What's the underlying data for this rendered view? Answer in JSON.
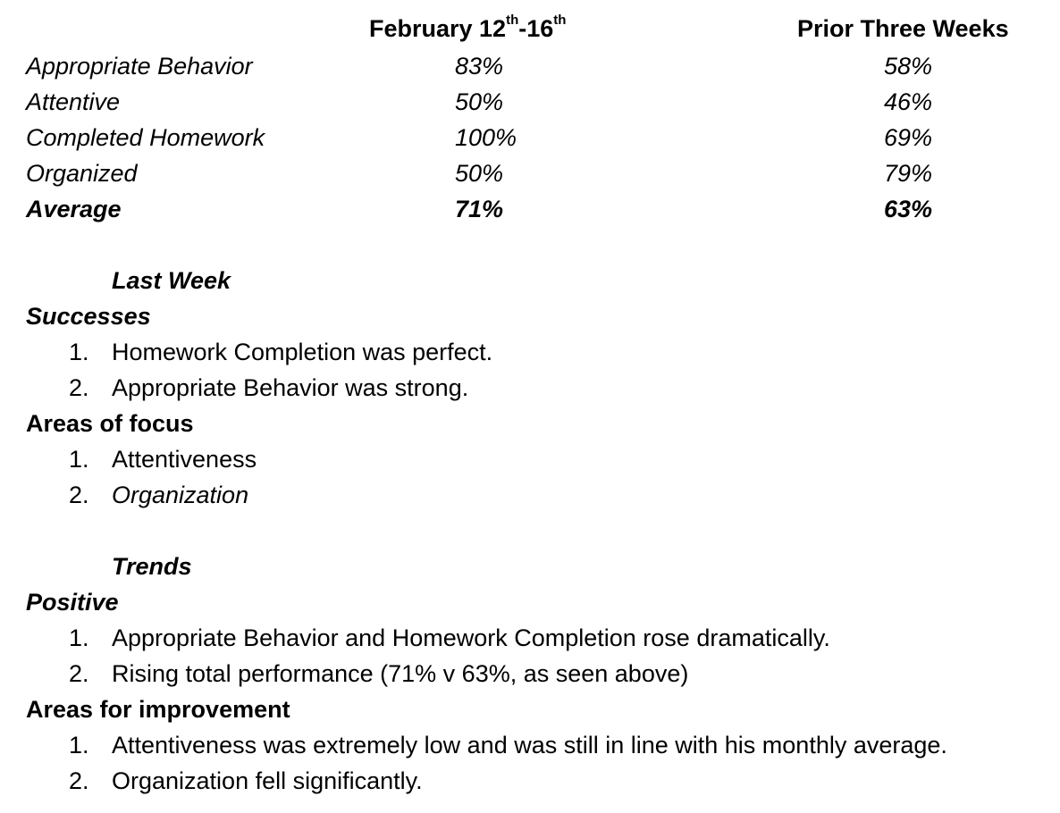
{
  "table": {
    "headers": {
      "current": {
        "main": "February 12",
        "sup1": "th",
        "mid": "-16",
        "sup2": "th"
      },
      "prior": "Prior Three Weeks"
    },
    "rows": [
      {
        "label": "Appropriate Behavior",
        "current": "83%",
        "prior": "58%"
      },
      {
        "label": "Attentive",
        "current": "50%",
        "prior": "46%"
      },
      {
        "label": "Completed Homework",
        "current": "100%",
        "prior": "69%"
      },
      {
        "label": "Organized",
        "current": "50%",
        "prior": "79%"
      }
    ],
    "average": {
      "label": "Average",
      "current": "71%",
      "prior": "63%"
    }
  },
  "last_week": {
    "heading": "Last Week",
    "successes": {
      "heading": "Successes",
      "items": [
        {
          "num": "1.",
          "text": "Homework Completion was perfect."
        },
        {
          "num": "2.",
          "text": "Appropriate Behavior was strong."
        }
      ]
    },
    "focus": {
      "heading": "Areas of focus",
      "items": [
        {
          "num": "1.",
          "text": "Attentiveness"
        },
        {
          "num": "2.",
          "text": "Organization"
        }
      ]
    }
  },
  "trends": {
    "heading": "Trends",
    "positive": {
      "heading": "Positive",
      "items": [
        {
          "num": "1.",
          "text": "Appropriate Behavior and Homework Completion rose dramatically."
        },
        {
          "num": "2.",
          "text": "Rising total performance (71% v 63%, as seen above)"
        }
      ]
    },
    "improvement": {
      "heading": "Areas for improvement",
      "items": [
        {
          "num": "1.",
          "text": "Attentiveness was extremely low and was still in line with his monthly average."
        },
        {
          "num": "2.",
          "text": "Organization fell significantly."
        }
      ]
    }
  }
}
